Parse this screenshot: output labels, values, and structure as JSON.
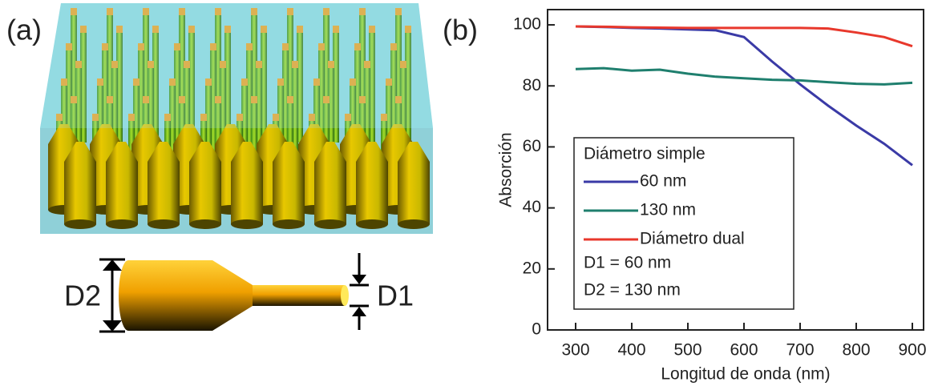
{
  "illustration": {
    "panel_label": "(a)",
    "d2_label": "D2",
    "d1_label": "D1"
  },
  "chart_data": {
    "type": "line",
    "panel_label": "(b)",
    "x_label": "Longitud de onda (nm)",
    "y_label": "Absorción",
    "x": [
      300,
      350,
      400,
      450,
      500,
      550,
      600,
      650,
      700,
      750,
      800,
      850,
      900
    ],
    "series": [
      {
        "name": "60 nm",
        "color": "#3a3aa6",
        "values": [
          99.5,
          99.3,
          99,
          98.8,
          98.5,
          98.2,
          96,
          88,
          80.5,
          73.5,
          67,
          61,
          54
        ]
      },
      {
        "name": "130 nm",
        "color": "#1f7f6e",
        "values": [
          85.5,
          85.8,
          85,
          85.3,
          84,
          83,
          82.5,
          82,
          81.8,
          81.2,
          80.7,
          80.5,
          81
        ]
      },
      {
        "name": "Diámetro dual",
        "color": "#e8382c",
        "values": [
          99.5,
          99.4,
          99.2,
          99.1,
          99,
          99,
          99,
          99,
          99,
          98.8,
          97.5,
          96,
          93
        ]
      }
    ],
    "legend_title": "Diámetro simple",
    "legend_notes": [
      "D1 = 60 nm",
      "D2 = 130 nm"
    ],
    "xlim": [
      250,
      920
    ],
    "ylim": [
      0,
      105
    ],
    "xticks": [
      300,
      400,
      500,
      600,
      700,
      800,
      900
    ],
    "yticks": [
      0,
      20,
      40,
      60,
      80,
      100
    ],
    "grid": false
  }
}
